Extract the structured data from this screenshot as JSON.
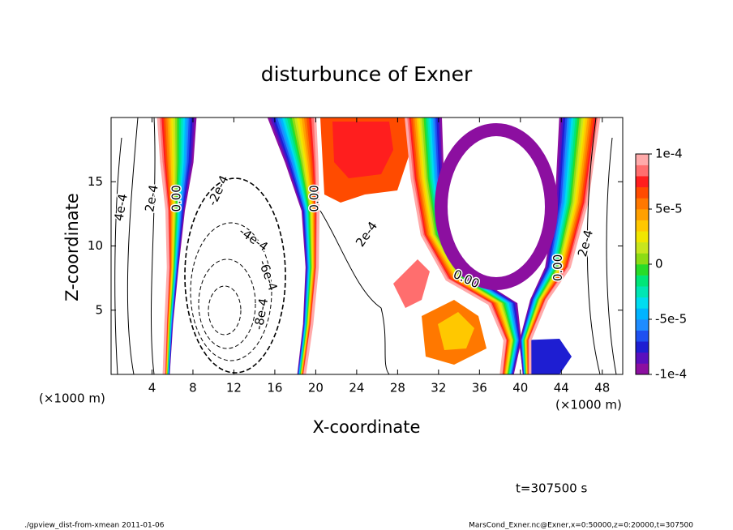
{
  "chart_data": {
    "type": "contour",
    "title": "disturbunce of Exner",
    "xlabel": "X-coordinate",
    "ylabel": "Z-coordinate",
    "x_unit": "(×1000 m)",
    "xlim": [
      0,
      50
    ],
    "ylim": [
      0,
      20
    ],
    "xticks": [
      4,
      8,
      12,
      16,
      20,
      24,
      28,
      32,
      36,
      40,
      44,
      48
    ],
    "yticks": [
      5,
      10,
      15
    ],
    "colorbar": {
      "clim": [
        -0.0001,
        0.0001
      ],
      "ticks": [
        {
          "value": 0.0001,
          "label": "1e-4"
        },
        {
          "value": 5e-05,
          "label": "5e-5"
        },
        0,
        {
          "value": -5e-05,
          "label": "-5e-5"
        },
        {
          "value": -0.0001,
          "label": "-1e-4"
        }
      ],
      "colors": [
        "#8c0fa0",
        "#5a0fbe",
        "#1e1ed2",
        "#1e50f0",
        "#1e8cff",
        "#00b4ff",
        "#00dcf0",
        "#00e6b4",
        "#00e678",
        "#28dc28",
        "#8cdc14",
        "#c8e61e",
        "#f0e600",
        "#ffc800",
        "#ffa000",
        "#ff7800",
        "#ff4b00",
        "#ff1e1e",
        "#ff6e6e",
        "#ffaaaa"
      ]
    },
    "contour_labels": [
      {
        "label": "4e-4",
        "value": 0.0004,
        "x": 1,
        "y": 13
      },
      {
        "label": "2e-4",
        "value": 0.0002,
        "x": 4,
        "y": 13.7
      },
      {
        "label": "0.00",
        "value": 0,
        "x": 6.4,
        "y": 13.7
      },
      {
        "label": "-2e-4",
        "value": -0.0002,
        "x": 10.5,
        "y": 14.3
      },
      {
        "label": "-4e-4",
        "value": -0.0004,
        "x": 13.9,
        "y": 10.5
      },
      {
        "label": "-6e-4",
        "value": -0.0006,
        "x": 15.3,
        "y": 7.7
      },
      {
        "label": "-8e-4",
        "value": -0.0008,
        "x": 14.7,
        "y": 4.7
      },
      {
        "label": "0.00",
        "value": 0,
        "x": 19.9,
        "y": 13.7
      },
      {
        "label": "2e-4",
        "value": 0.0002,
        "x": 25,
        "y": 10.9
      },
      {
        "label": "0.00",
        "value": 0,
        "x": 34.7,
        "y": 7.4
      },
      {
        "label": "0.00",
        "value": 0,
        "x": 43.7,
        "y": 8.3
      },
      {
        "label": "2e-4",
        "value": 0.0002,
        "x": 46.4,
        "y": 10.2
      }
    ],
    "time_label": "t=307500 s",
    "footer_left": "./gpview_dist-from-xmean  2011-01-06",
    "footer_right": "MarsCond_Exner.nc@Exner,x=0:50000,z=0:20000,t=307500"
  }
}
